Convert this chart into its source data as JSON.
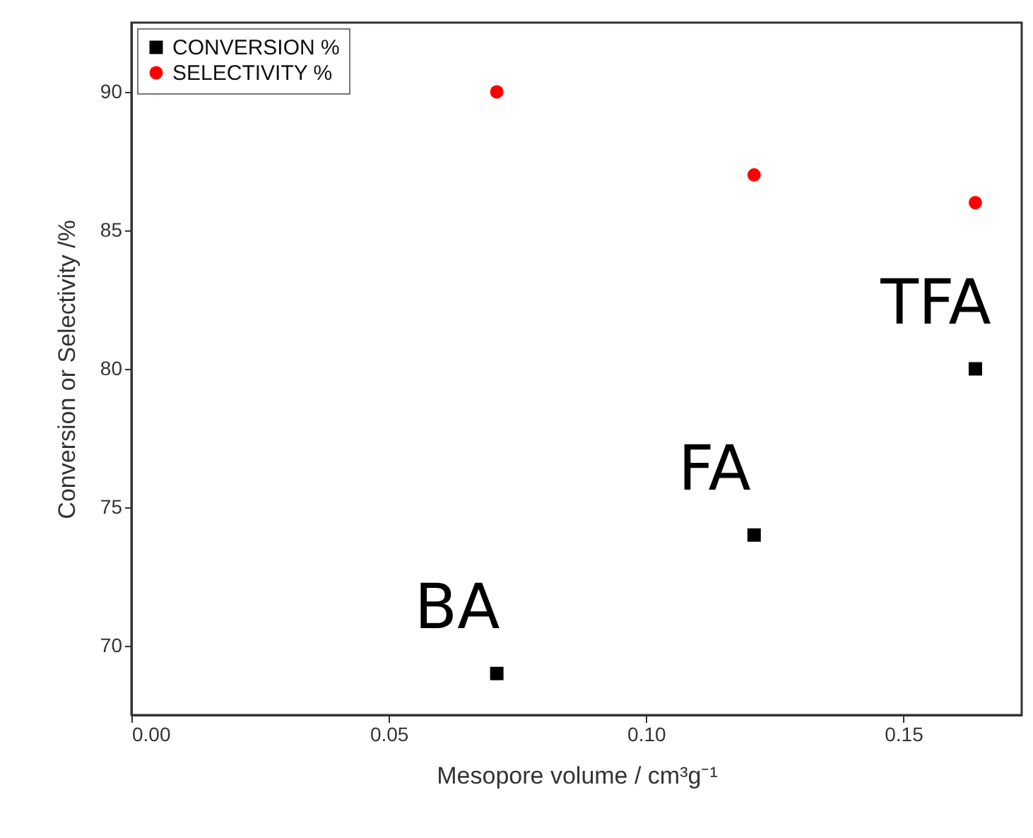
{
  "chart_data": {
    "type": "scatter",
    "xlabel": "Mesopore volume / cm³g⁻¹",
    "ylabel": "Conversion or Selectivity /%",
    "x": [
      0.071,
      0.121,
      0.164
    ],
    "series": [
      {
        "name": "CONVERSION %",
        "color": "#000000",
        "marker": "square",
        "values": [
          69,
          74,
          80
        ]
      },
      {
        "name": "SELECTIVITY %",
        "color": "#ff0000",
        "marker": "circle",
        "values": [
          90,
          87,
          86
        ]
      }
    ],
    "annotations": [
      {
        "text": "BA",
        "x": 0.071,
        "y": 69
      },
      {
        "text": "FA",
        "x": 0.121,
        "y": 74
      },
      {
        "text": "TFA",
        "x": 0.164,
        "y": 80
      }
    ],
    "xlim": [
      0,
      0.173
    ],
    "xticks": [
      {
        "value": 0,
        "label": "0.00"
      },
      {
        "value": 0.05,
        "label": "0.05"
      },
      {
        "value": 0.1,
        "label": "0.10"
      },
      {
        "value": 0.15,
        "label": "0.15"
      }
    ],
    "ylim": [
      67.5,
      92.5
    ],
    "yticks": [
      70,
      75,
      80,
      85,
      90
    ],
    "grid": false,
    "legend": "top left"
  }
}
